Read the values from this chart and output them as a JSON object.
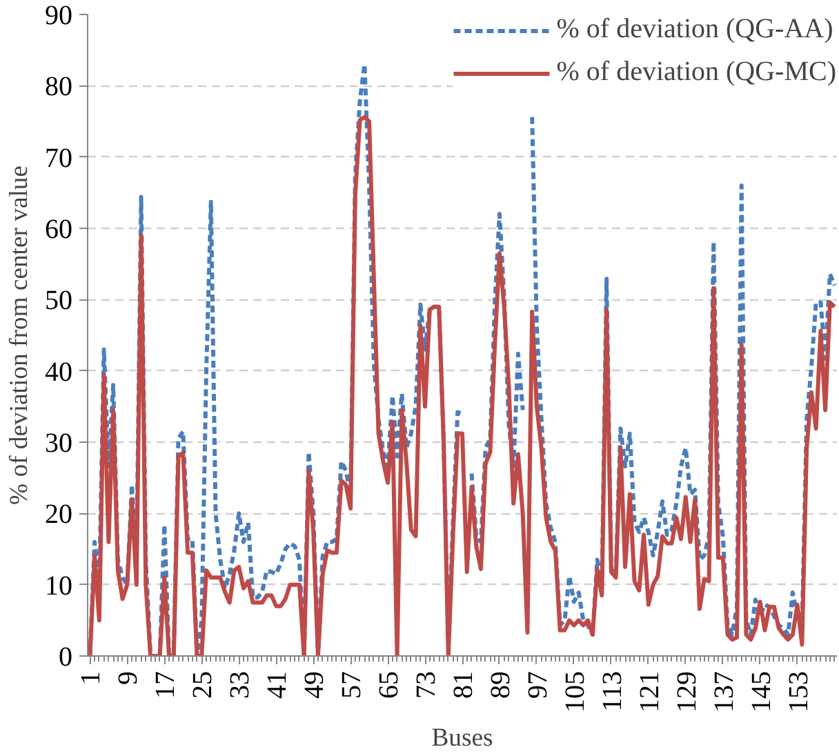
{
  "chart_data": {
    "type": "line",
    "xlabel": "Buses",
    "ylabel": "% of deviation from center value",
    "x": [
      1,
      2,
      3,
      4,
      5,
      6,
      7,
      8,
      9,
      10,
      11,
      12,
      13,
      14,
      15,
      16,
      17,
      18,
      19,
      20,
      21,
      22,
      23,
      24,
      25,
      26,
      27,
      28,
      29,
      30,
      31,
      32,
      33,
      34,
      35,
      36,
      37,
      38,
      39,
      40,
      41,
      42,
      43,
      44,
      45,
      46,
      47,
      48,
      49,
      50,
      51,
      52,
      53,
      54,
      55,
      56,
      57,
      58,
      59,
      60,
      61,
      62,
      63,
      64,
      65,
      66,
      67,
      68,
      69,
      70,
      71,
      72,
      73,
      74,
      75,
      76,
      77,
      78,
      79,
      80,
      81,
      82,
      83,
      84,
      85,
      86,
      87,
      88,
      89,
      90,
      91,
      92,
      93,
      94,
      95,
      96,
      97,
      98,
      99,
      100,
      101,
      102,
      103,
      104,
      105,
      106,
      107,
      108,
      109,
      110,
      111,
      112,
      113,
      114,
      115,
      116,
      117,
      118,
      119,
      120,
      121,
      122,
      123,
      124,
      125,
      126,
      127,
      128,
      129,
      130,
      131,
      132,
      133,
      134,
      135,
      136,
      137,
      138,
      139,
      140,
      141,
      142,
      143,
      144,
      145,
      146,
      147,
      148,
      149,
      150,
      151,
      152,
      153,
      154,
      155,
      156,
      157,
      158,
      159,
      160,
      161
    ],
    "series": [
      {
        "name": "% of deviation (QG-AA)",
        "color": "#4a7ebb",
        "line_style": "dashed",
        "values": [
          0,
          16,
          10,
          43,
          26.6,
          38,
          13.5,
          11,
          10,
          24,
          13.5,
          64.4,
          13.5,
          0,
          0,
          0,
          18.4,
          0,
          0,
          30.5,
          31.5,
          16.4,
          16.4,
          0,
          5,
          40,
          63.7,
          20,
          13.5,
          9.5,
          11.5,
          14.8,
          20,
          16,
          18.7,
          8.2,
          8.2,
          9,
          12,
          11.8,
          11.5,
          13,
          15,
          15.8,
          15.4,
          13.5,
          0,
          28.6,
          20,
          0,
          14,
          16,
          16,
          16.4,
          27.3,
          26,
          22.7,
          67.3,
          77.9,
          83,
          66,
          41,
          33.2,
          28.6,
          26.6,
          36.5,
          28,
          36.8,
          29.2,
          31.2,
          35,
          49.3,
          43,
          48.6,
          49,
          49,
          30,
          1.6,
          18.7,
          34.2,
          34,
          null,
          25.6,
          16.8,
          16,
          29.2,
          30.5,
          49.6,
          62,
          50.3,
          32.5,
          26.6,
          42.4,
          34.5,
          null,
          75.6,
          46.3,
          33.2,
          21.4,
          18,
          16,
          4.3,
          5,
          11.2,
          7.6,
          8.9,
          5,
          4.3,
          3,
          13.5,
          10,
          52.9,
          12.2,
          11.5,
          31.9,
          26.6,
          31.2,
          18.7,
          17.4,
          19.4,
          17.4,
          14.1,
          17.4,
          21.7,
          17,
          17.7,
          21.4,
          26.6,
          29.2,
          22.7,
          23.3,
          13.5,
          14.1,
          16.8,
          58.1,
          21.4,
          16.8,
          4.3,
          3,
          6.9,
          66,
          5,
          3,
          7.9,
          5.6,
          7.2,
          6.9,
          5.6,
          4.3,
          3.9,
          3,
          8.9,
          5.6,
          4.3,
          33.2,
          40.4,
          49.6,
          49.6,
          41.7,
          53.6,
          52
        ]
      },
      {
        "name": "% of deviation (QG-MC)",
        "color": "#be4b48",
        "line_style": "solid",
        "values": [
          0,
          14,
          5,
          39.4,
          16,
          34.5,
          12,
          8,
          10,
          22,
          10,
          59,
          10,
          0,
          0,
          0,
          11,
          0,
          0,
          28,
          28.5,
          14.5,
          14.5,
          0,
          0,
          12,
          11,
          11,
          11,
          9,
          7.5,
          12,
          12.5,
          9.5,
          10.5,
          7.5,
          7.5,
          7.5,
          8.5,
          8.5,
          7,
          7,
          8,
          10,
          10,
          10,
          0,
          26,
          17.5,
          0,
          11.5,
          14.8,
          14.5,
          14.5,
          24.6,
          24,
          20.7,
          64.7,
          75.2,
          75.6,
          75,
          53,
          31.2,
          27.3,
          24.3,
          32.8,
          0,
          34.5,
          27.3,
          17.7,
          16.8,
          46.3,
          35,
          48.6,
          49,
          49,
          30,
          0,
          16.8,
          31.2,
          31.2,
          11.8,
          23.7,
          15.4,
          12.2,
          27,
          28.6,
          43.7,
          56.5,
          49,
          37.8,
          21.4,
          28.3,
          20,
          3.3,
          48.3,
          35,
          29.2,
          19.4,
          16,
          14.8,
          3.6,
          3.6,
          5,
          4.3,
          5,
          4.3,
          5,
          3,
          12.2,
          8.5,
          48.6,
          11.8,
          11,
          29.2,
          12.5,
          22.7,
          10.5,
          9.2,
          17,
          7.2,
          10,
          11.2,
          16.8,
          15.8,
          15.8,
          19.4,
          16.4,
          22.3,
          16,
          22,
          6.6,
          10.8,
          10.5,
          51.6,
          13.8,
          13.8,
          3,
          2.3,
          2.6,
          43.7,
          3,
          2.3,
          3.9,
          7.6,
          3.6,
          6.9,
          6.9,
          3.9,
          3,
          2.3,
          3,
          7.2,
          1.6,
          29.2,
          37,
          31.9,
          45.6,
          34.5,
          49.6,
          49
        ]
      }
    ],
    "xlim": [
      0.5,
      161.5
    ],
    "xticks": [
      1,
      9,
      17,
      25,
      33,
      41,
      49,
      57,
      65,
      73,
      81,
      89,
      97,
      105,
      113,
      121,
      129,
      137,
      145,
      153
    ],
    "ylim": [
      0,
      90
    ],
    "yticks": [
      0,
      10,
      20,
      30,
      40,
      50,
      60,
      70,
      80,
      90
    ],
    "grid": "y",
    "legend": "top right"
  }
}
